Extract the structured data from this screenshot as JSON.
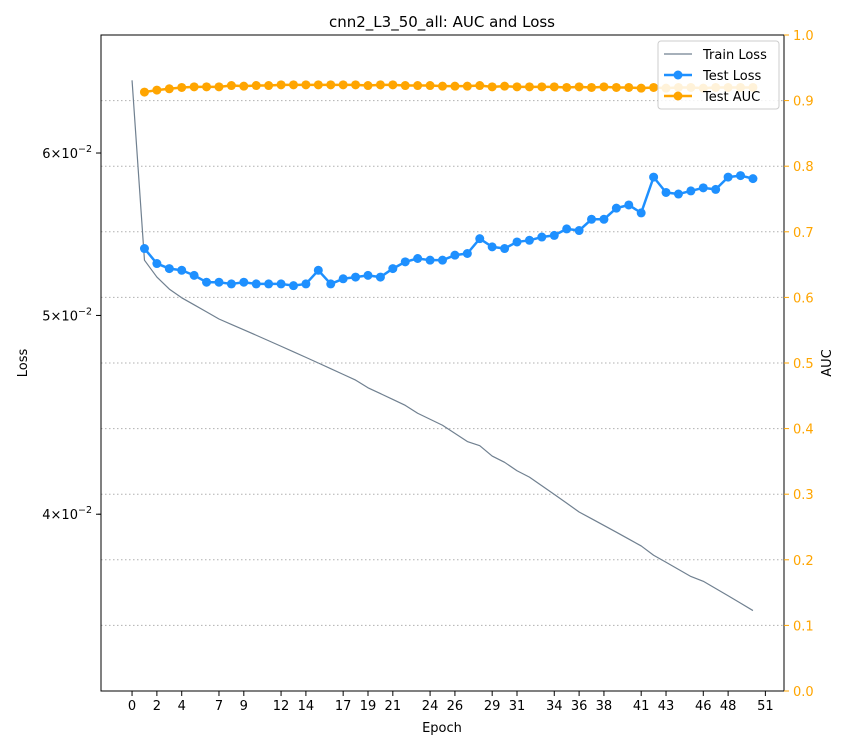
{
  "chart_data": {
    "type": "line",
    "title": "cnn2_L3_50_all: AUC and Loss",
    "xlabel": "Epoch",
    "ylabel": "Loss",
    "y2label": "AUC",
    "yscale": "log",
    "ylim": [
      0.0328,
      0.0685
    ],
    "y2lim": [
      0.0,
      1.0
    ],
    "xlim": [
      -2.5,
      52.5
    ],
    "xticks": [
      0,
      2,
      4,
      7,
      9,
      12,
      14,
      17,
      19,
      21,
      24,
      26,
      29,
      31,
      34,
      36,
      38,
      41,
      43,
      46,
      48,
      51
    ],
    "y_major_ticks": [
      {
        "value": 0.04,
        "mantissa": "4",
        "base": "10",
        "exp": "−2"
      },
      {
        "value": 0.05,
        "mantissa": "5",
        "base": "10",
        "exp": "−2"
      },
      {
        "value": 0.06,
        "mantissa": "6",
        "base": "10",
        "exp": "−2"
      }
    ],
    "y2ticks": [
      "0.0",
      "0.1",
      "0.2",
      "0.3",
      "0.4",
      "0.5",
      "0.6",
      "0.7",
      "0.8",
      "0.9",
      "1.0"
    ],
    "grid": "horizontal dotted on AUC axis",
    "legend_position": "top-right",
    "colors": {
      "train_loss": "#708090",
      "test_loss": "#1e90ff",
      "test_auc": "#ffa500",
      "auc_axis": "#ffa500",
      "grid": "#b0b0b0"
    },
    "series": [
      {
        "name": "Train Loss",
        "axis": "loss",
        "marker": false,
        "x": [
          0,
          1,
          2,
          3,
          4,
          5,
          6,
          7,
          8,
          9,
          10,
          11,
          12,
          13,
          14,
          15,
          16,
          17,
          18,
          19,
          20,
          21,
          22,
          23,
          24,
          25,
          26,
          27,
          28,
          29,
          30,
          31,
          32,
          33,
          34,
          35,
          36,
          37,
          38,
          39,
          40,
          41,
          42,
          43,
          44,
          45,
          46,
          47,
          48,
          49,
          50
        ],
        "values": [
          0.0651,
          0.0532,
          0.0522,
          0.0515,
          0.051,
          0.0506,
          0.0502,
          0.0498,
          0.0495,
          0.0492,
          0.0489,
          0.0486,
          0.0483,
          0.048,
          0.0477,
          0.0474,
          0.0471,
          0.0468,
          0.0465,
          0.0461,
          0.0458,
          0.0455,
          0.0452,
          0.0448,
          0.0445,
          0.0442,
          0.0438,
          0.0434,
          0.0432,
          0.0427,
          0.0424,
          0.042,
          0.0417,
          0.0413,
          0.0409,
          0.0405,
          0.0401,
          0.0398,
          0.0395,
          0.0392,
          0.0389,
          0.0386,
          0.0382,
          0.0379,
          0.0376,
          0.0373,
          0.0371,
          0.0368,
          0.0365,
          0.0362,
          0.0359
        ]
      },
      {
        "name": "Test Loss",
        "axis": "loss",
        "marker": true,
        "x": [
          1,
          2,
          3,
          4,
          5,
          6,
          7,
          8,
          9,
          10,
          11,
          12,
          13,
          14,
          15,
          16,
          17,
          18,
          19,
          20,
          21,
          22,
          23,
          24,
          25,
          26,
          27,
          28,
          29,
          30,
          31,
          32,
          33,
          34,
          35,
          36,
          37,
          38,
          39,
          40,
          41,
          42,
          43,
          44,
          45,
          46,
          47,
          48,
          49,
          50
        ],
        "values": [
          0.0539,
          0.053,
          0.0527,
          0.0526,
          0.0523,
          0.0519,
          0.0519,
          0.0518,
          0.0519,
          0.0518,
          0.0518,
          0.0518,
          0.0517,
          0.0518,
          0.0526,
          0.0518,
          0.0521,
          0.0522,
          0.0523,
          0.0522,
          0.0527,
          0.0531,
          0.0533,
          0.0532,
          0.0532,
          0.0535,
          0.0536,
          0.0545,
          0.054,
          0.0539,
          0.0543,
          0.0544,
          0.0546,
          0.0547,
          0.0551,
          0.055,
          0.0557,
          0.0557,
          0.0564,
          0.0566,
          0.0561,
          0.0584,
          0.0574,
          0.0573,
          0.0575,
          0.0577,
          0.0576,
          0.0584,
          0.0585,
          0.0583
        ]
      },
      {
        "name": "Test AUC",
        "axis": "auc",
        "marker": true,
        "x": [
          1,
          2,
          3,
          4,
          5,
          6,
          7,
          8,
          9,
          10,
          11,
          12,
          13,
          14,
          15,
          16,
          17,
          18,
          19,
          20,
          21,
          22,
          23,
          24,
          25,
          26,
          27,
          28,
          29,
          30,
          31,
          32,
          33,
          34,
          35,
          36,
          37,
          38,
          39,
          40,
          41,
          42,
          43,
          44,
          45,
          46,
          47,
          48,
          49,
          50
        ],
        "values": [
          0.913,
          0.916,
          0.918,
          0.92,
          0.921,
          0.921,
          0.921,
          0.923,
          0.922,
          0.923,
          0.923,
          0.924,
          0.924,
          0.924,
          0.924,
          0.924,
          0.924,
          0.924,
          0.923,
          0.924,
          0.924,
          0.923,
          0.923,
          0.923,
          0.922,
          0.922,
          0.922,
          0.923,
          0.921,
          0.922,
          0.921,
          0.921,
          0.921,
          0.921,
          0.92,
          0.921,
          0.92,
          0.921,
          0.92,
          0.92,
          0.919,
          0.92,
          0.919,
          0.92,
          0.92,
          0.919,
          0.92,
          0.92,
          0.92,
          0.92
        ]
      }
    ]
  }
}
